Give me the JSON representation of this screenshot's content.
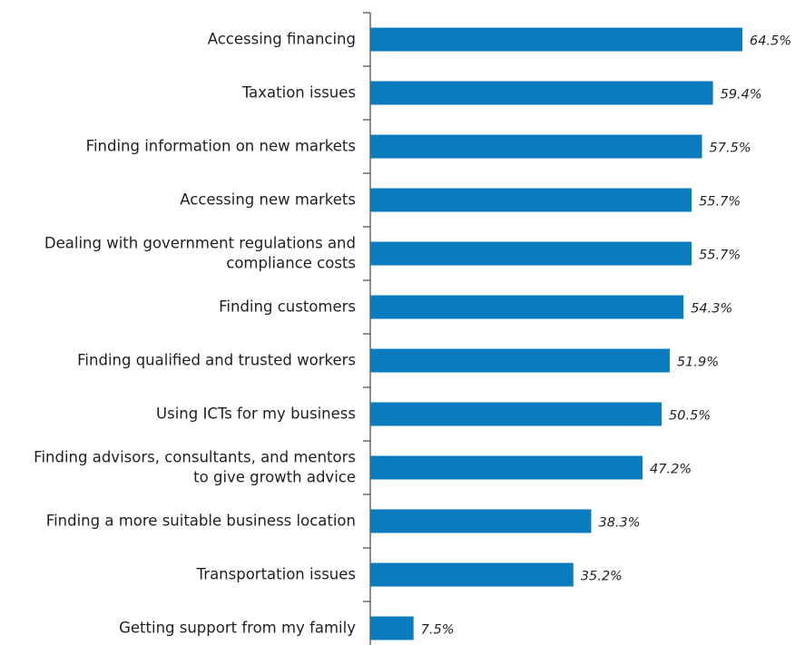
{
  "chart_data": {
    "type": "bar",
    "orientation": "horizontal",
    "categories": [
      "Accessing financing",
      "Taxation issues",
      "Finding information on new markets",
      "Accessing new markets",
      "Dealing with government regulations and\ncompliance costs",
      "Finding customers",
      "Finding qualified and trusted workers",
      "Using ICTs for my business",
      "Finding advisors, consultants, and mentors\nto give growth advice",
      "Finding a more suitable business location",
      "Transportation issues",
      "Getting support from my family"
    ],
    "values": [
      64.5,
      59.4,
      57.5,
      55.7,
      55.7,
      54.3,
      51.9,
      50.5,
      47.2,
      38.3,
      35.2,
      7.5
    ],
    "value_labels": [
      "64.5%",
      "59.4%",
      "57.5%",
      "55.7%",
      "55.7%",
      "54.3%",
      "51.9%",
      "50.5%",
      "47.2%",
      "38.3%",
      "35.2%",
      "7.5%"
    ],
    "color": "#0a7bbd",
    "xlim": [
      0,
      70
    ]
  }
}
